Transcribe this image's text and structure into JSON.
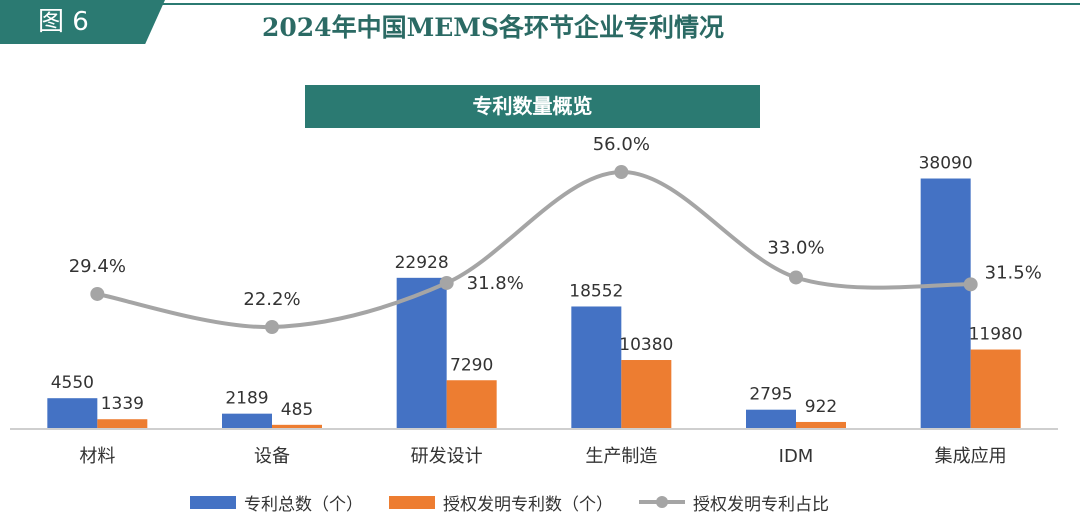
{
  "header": {
    "figure_tag": "图 6",
    "title": "2024年中国MEMS各环节企业专利情况",
    "subtitle": "专利数量概览"
  },
  "colors": {
    "accent": "#2b7a72",
    "bar_total": "#4472c4",
    "bar_granted": "#ed7d31",
    "line_ratio": "#a5a5a5"
  },
  "chart_data": {
    "type": "bar",
    "categories": [
      "材料",
      "设备",
      "研发设计",
      "生产制造",
      "IDM",
      "集成应用"
    ],
    "series": [
      {
        "name": "专利总数（个）",
        "type": "bar",
        "values": [
          4550,
          2189,
          22928,
          18552,
          2795,
          38090
        ]
      },
      {
        "name": "授权发明专利数（个）",
        "type": "bar",
        "values": [
          1339,
          485,
          7290,
          10380,
          922,
          11980
        ]
      },
      {
        "name": "授权发明专利占比",
        "type": "line",
        "axis": "secondary",
        "values": [
          29.4,
          22.2,
          31.8,
          56.0,
          33.0,
          31.5
        ]
      }
    ],
    "data_labels": {
      "bars": [
        [
          "4550",
          "2189",
          "22928",
          "18552",
          "2795",
          "38090"
        ],
        [
          "1339",
          "485",
          "7290",
          "10380",
          "922",
          "11980"
        ]
      ],
      "line": [
        "29.4%",
        "22.2%",
        "31.8%",
        "56.0%",
        "33.0%",
        "31.5%"
      ]
    },
    "ylim": [
      0,
      40000
    ],
    "y2lim": [
      0,
      100
    ],
    "legend": "bottom",
    "grid": false
  }
}
